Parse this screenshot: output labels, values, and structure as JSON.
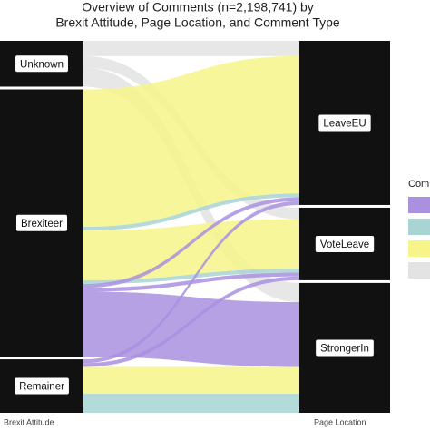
{
  "chart_data": {
    "type": "alluvial",
    "title": [
      "Overview of Comments (n=2,198,741) by",
      "Brexit Attitude, Page Location, and Comment Type"
    ],
    "left_axis_label": "Brexit Attitude",
    "right_axis_label": "Page Location",
    "legend_title": "Comm",
    "legend_colors": [
      "#a991e0",
      "#a8d4d4",
      "#f7f48a",
      "#e3e3e3"
    ],
    "left_nodes": [
      "Unknown",
      "Brexiteer",
      "Remainer"
    ],
    "right_nodes": [
      "LeaveEU",
      "VoteLeave",
      "StrongerIn"
    ],
    "flows": [
      {
        "from": "Unknown",
        "to": "LeaveEU",
        "color": "#e3e3e3",
        "value": 4
      },
      {
        "from": "Unknown",
        "to": "VoteLeave",
        "color": "#e3e3e3",
        "value": 3
      },
      {
        "from": "Unknown",
        "to": "StrongerIn",
        "color": "#e3e3e3",
        "value": 5
      },
      {
        "from": "Brexiteer",
        "to": "LeaveEU",
        "color": "#f7f48a",
        "value": 36
      },
      {
        "from": "Brexiteer",
        "to": "LeaveEU",
        "color": "#a8d4d4",
        "value": 1
      },
      {
        "from": "Brexiteer",
        "to": "VoteLeave",
        "color": "#f7f48a",
        "value": 13
      },
      {
        "from": "Brexiteer",
        "to": "VoteLeave",
        "color": "#a8d4d4",
        "value": 1
      },
      {
        "from": "Brexiteer",
        "to": "LeaveEU",
        "color": "#a991e0",
        "value": 1
      },
      {
        "from": "Brexiteer",
        "to": "VoteLeave",
        "color": "#a991e0",
        "value": 1
      },
      {
        "from": "Brexiteer",
        "to": "StrongerIn",
        "color": "#a991e0",
        "value": 17
      },
      {
        "from": "Remainer",
        "to": "LeaveEU",
        "color": "#a991e0",
        "value": 1
      },
      {
        "from": "Remainer",
        "to": "VoteLeave",
        "color": "#a991e0",
        "value": 1
      },
      {
        "from": "Remainer",
        "to": "StrongerIn",
        "color": "#f7f48a",
        "value": 7
      },
      {
        "from": "Remainer",
        "to": "StrongerIn",
        "color": "#a8d4d4",
        "value": 5
      }
    ]
  }
}
